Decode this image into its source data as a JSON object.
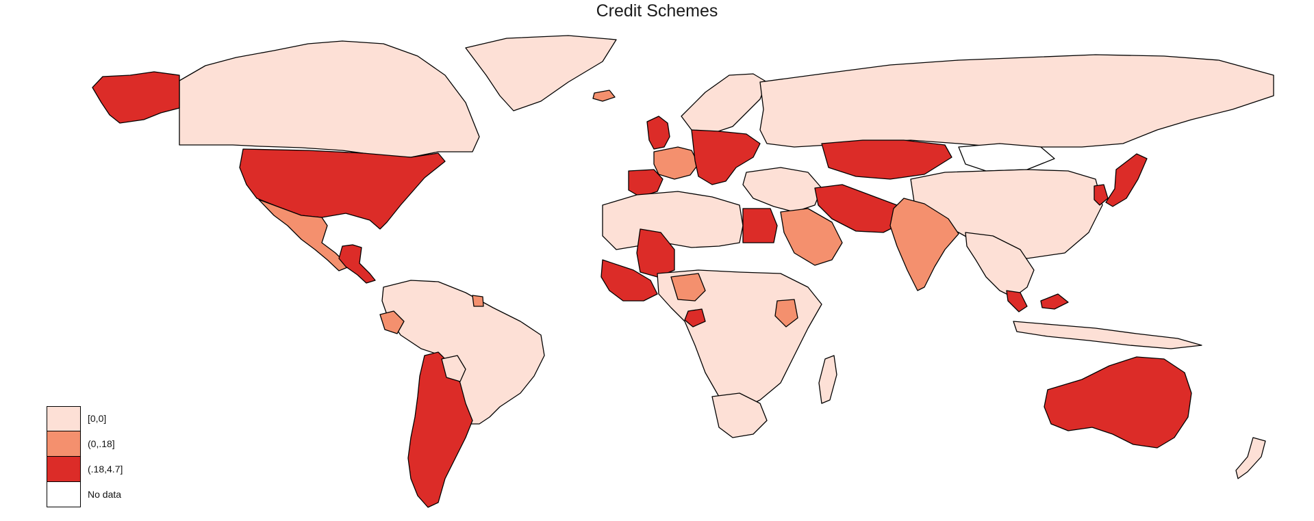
{
  "title": "Credit Schemes",
  "colors": {
    "c0": "#fde0d6",
    "c1": "#f4906e",
    "c2": "#dc2c28",
    "nodata": "#ffffff",
    "outline": "#000000"
  },
  "legend": [
    {
      "label": "[0,0]",
      "color_key": "c0"
    },
    {
      "label": "(0,.18]",
      "color_key": "c1"
    },
    {
      "label": "(.18,4.7]",
      "color_key": "c2"
    },
    {
      "label": "No data",
      "color_key": "nodata"
    }
  ],
  "regions": {
    "canada": "c0",
    "greenland": "c0",
    "alaska": "c2",
    "usa": "c2",
    "mexico": "c1",
    "central-america": "c2",
    "south-america": "c0",
    "colombia-ecuador": "c1",
    "chile-argentina": "c2",
    "bolivia": "c0",
    "guyana": "c1",
    "russia": "c0",
    "europe-west": "c1",
    "europe-central": "c2",
    "uk": "c2",
    "iberia": "c2",
    "scandinavia": "c0",
    "iceland": "c1",
    "turkey-middle-east": "c0",
    "kazakhstan": "c2",
    "mongolia": "nodata",
    "china": "c0",
    "iran-pakistan": "c2",
    "saudi-arabia": "c1",
    "india": "c1",
    "southeast-asia": "c0",
    "japan": "c2",
    "korea": "c2",
    "indonesia": "c0",
    "malaysia": "c2",
    "australia": "c2",
    "new-zealand": "c0",
    "north-africa": "c0",
    "egypt": "c2",
    "mali": "c2",
    "west-africa": "c2",
    "nigeria": "c1",
    "sub-saharan-africa": "c0",
    "kenya": "c1",
    "madagascar": "c0",
    "southern-africa": "c0",
    "gabon": "c2"
  }
}
